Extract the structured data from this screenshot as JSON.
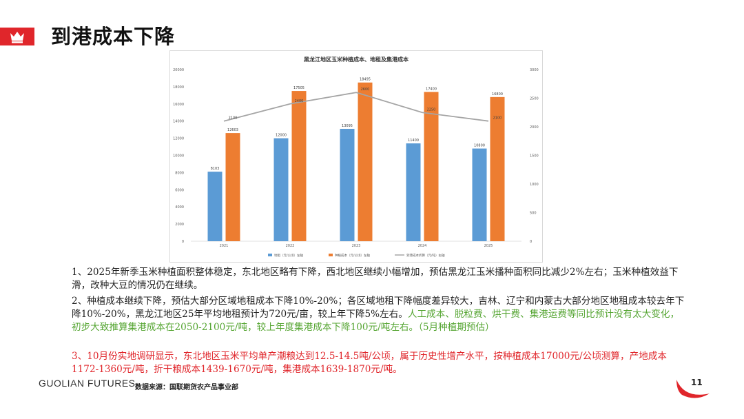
{
  "page": {
    "title": "到港成本下降",
    "brand": "GUOLIAN FUTURES",
    "source": "数据来源：国联期货农产品事业部",
    "page_number": "11",
    "accent_color": "#e0262b"
  },
  "icons": {
    "badge": "crown-icon"
  },
  "paragraphs": {
    "p1": "1、2025年新季玉米种植面积整体稳定，东北地区略有下降，西北地区继续小幅增加，预估黑龙江玉米播种面积同比减少2%左右；玉米种植效益下滑，改种大豆的情况仍在继续。",
    "p2a": "2、种植成本继续下降，预估大部分区域地租成本下降10%-20%；各区域地租下降幅度差异较大，吉林、辽宁和内蒙古大部分地区地租成本较去年下降10%-20%，黑龙江地区25年平均地租预计为720元/亩，较上年下降5%左右。",
    "p2b": "人工成本、脱粒费、烘干费、集港运费等同比预计没有太大变化，初步大致推算集港成本在2050-2100元/吨，较上年度集港成本下降100元/吨左右。（5月种植期预估）",
    "p3": "3、10月份实地调研显示，东北地区玉米平均单产潮粮达到12.5-14.5吨/公顷，属于历史性增产水平，按种植成本17000元/公顷测算，产地成本1172-1360元/吨，折干粮成本1439-1670元/吨，集港成本1639-1870元/吨。"
  },
  "chart_data": {
    "type": "bar",
    "title": "黑龙江地区玉米种植成本、地租及集港成本",
    "categories": [
      "2021",
      "2022",
      "2023",
      "2024",
      "2025"
    ],
    "series": [
      {
        "name": "地租（元/公顷）左轴",
        "type": "bar",
        "axis": "left",
        "color": "#5b9bd5",
        "values": [
          8103,
          12000,
          13095,
          11400,
          10800
        ]
      },
      {
        "name": "种植成本（元/公顷）左轴",
        "type": "bar",
        "axis": "left",
        "color": "#ed7d31",
        "values": [
          12603,
          17505,
          18495,
          17400,
          16800
        ]
      },
      {
        "name": "到港成本折算（元/吨）右轴",
        "type": "line",
        "axis": "right",
        "color": "#a5a5a5",
        "values": [
          2100,
          2400,
          2600,
          2250,
          2100
        ]
      }
    ],
    "y_left": {
      "min": 0,
      "max": 20000,
      "ticks": [
        0,
        2000,
        4000,
        6000,
        8000,
        10000,
        12000,
        14000,
        16000,
        18000,
        20000
      ]
    },
    "y_right": {
      "min": 0,
      "max": 3000,
      "ticks": [
        0,
        500,
        1000,
        1500,
        2000,
        2500,
        3000
      ]
    },
    "legend_position": "bottom",
    "grid": false
  }
}
